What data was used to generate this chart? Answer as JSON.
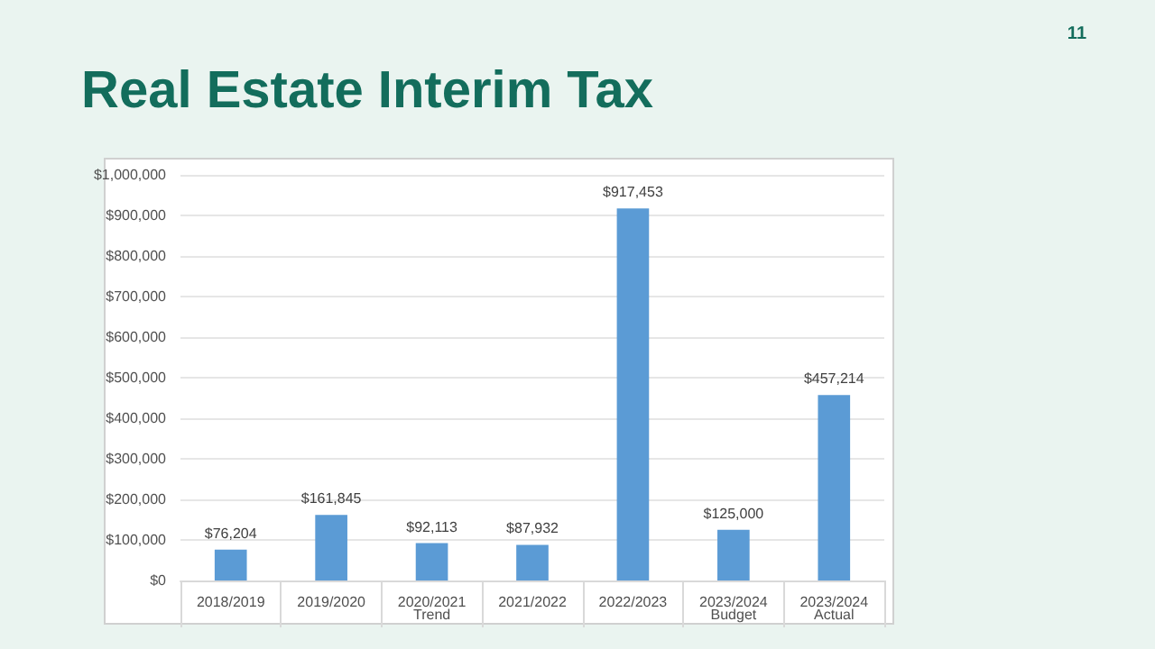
{
  "chart_data": {
    "type": "bar",
    "title": "Real Estate Interim Tax",
    "categories": [
      "2018/2019",
      "2019/2020",
      "2020/2021",
      "2021/2022",
      "2022/2023",
      "2023/2024",
      "2023/2024"
    ],
    "values": [
      76204,
      161845,
      92113,
      87932,
      917453,
      125000,
      457214
    ],
    "value_labels": [
      "$76,204",
      "$161,845",
      "$92,113",
      "$87,932",
      "$917,453",
      "$125,000",
      "$457,214"
    ],
    "color": "#5b9bd5",
    "ylim": [
      0,
      1000000
    ],
    "yticks": [
      {
        "value": 0,
        "label": "$0"
      },
      {
        "value": 100000,
        "label": "$100,000"
      },
      {
        "value": 200000,
        "label": "$200,000"
      },
      {
        "value": 300000,
        "label": "$300,000"
      },
      {
        "value": 400000,
        "label": "$400,000"
      },
      {
        "value": 500000,
        "label": "$500,000"
      },
      {
        "value": 600000,
        "label": "$600,000"
      },
      {
        "value": 700000,
        "label": "$700,000"
      },
      {
        "value": 800000,
        "label": "$800,000"
      },
      {
        "value": 900000,
        "label": "$900,000"
      },
      {
        "value": 1000000,
        "label": "$1,000,000"
      }
    ],
    "grid": "y",
    "annotations": [
      "11",
      "Trend",
      "Budget",
      "Actual"
    ]
  }
}
